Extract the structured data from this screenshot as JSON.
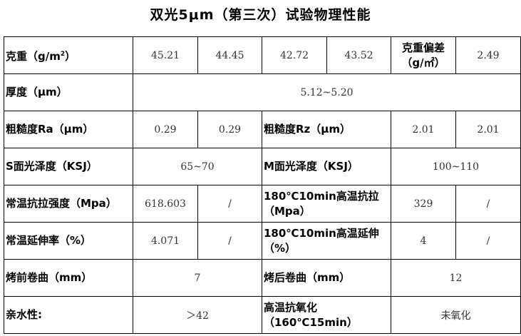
{
  "title": "双光5μm（第三次）试验物理性能",
  "rows": {
    "weight": {
      "label": "克重（g/m",
      "label_sup": "2",
      "label_end": "）",
      "values": [
        "45.21",
        "44.45",
        "42.72",
        "43.52"
      ],
      "dev_label": "克重偏差（g/㎡）",
      "dev_value": "2.49"
    },
    "thickness": {
      "label": "厚度（μm）",
      "value": "5.12~5.20"
    },
    "roughness": {
      "ra_label": "粗糙度Ra（μm）",
      "ra_values": [
        "0.29",
        "0.29"
      ],
      "rz_label": "粗糙度Rz（μm）",
      "rz_values": [
        "2.01",
        "2.01"
      ]
    },
    "gloss": {
      "s_label": "S面光泽度（KSJ）",
      "s_value": "65~70",
      "m_label": "M面光泽度（KSJ）",
      "m_value": "100~110"
    },
    "tensile": {
      "label": "常温抗拉强度（Mpa）",
      "values": [
        "618.603",
        "/"
      ],
      "ht_label": "180℃10min高温抗拉（Mpa）",
      "ht_values": [
        "329",
        "/"
      ]
    },
    "elongation": {
      "label": "常温延伸率（%）",
      "values": [
        "4.071",
        "/"
      ],
      "ht_label": "180℃10min高温延伸（%）",
      "ht_values": [
        "4",
        "/"
      ]
    },
    "curl": {
      "before_label": "烤前卷曲（mm）",
      "before_value": "7",
      "after_label": "烤后卷曲（mm）",
      "after_value": "12"
    },
    "misc": {
      "hydro_label": "亲水性:",
      "hydro_value": "＞42",
      "ox_label": "高温抗氧化（160℃15min）",
      "ox_value": "未氧化"
    }
  }
}
